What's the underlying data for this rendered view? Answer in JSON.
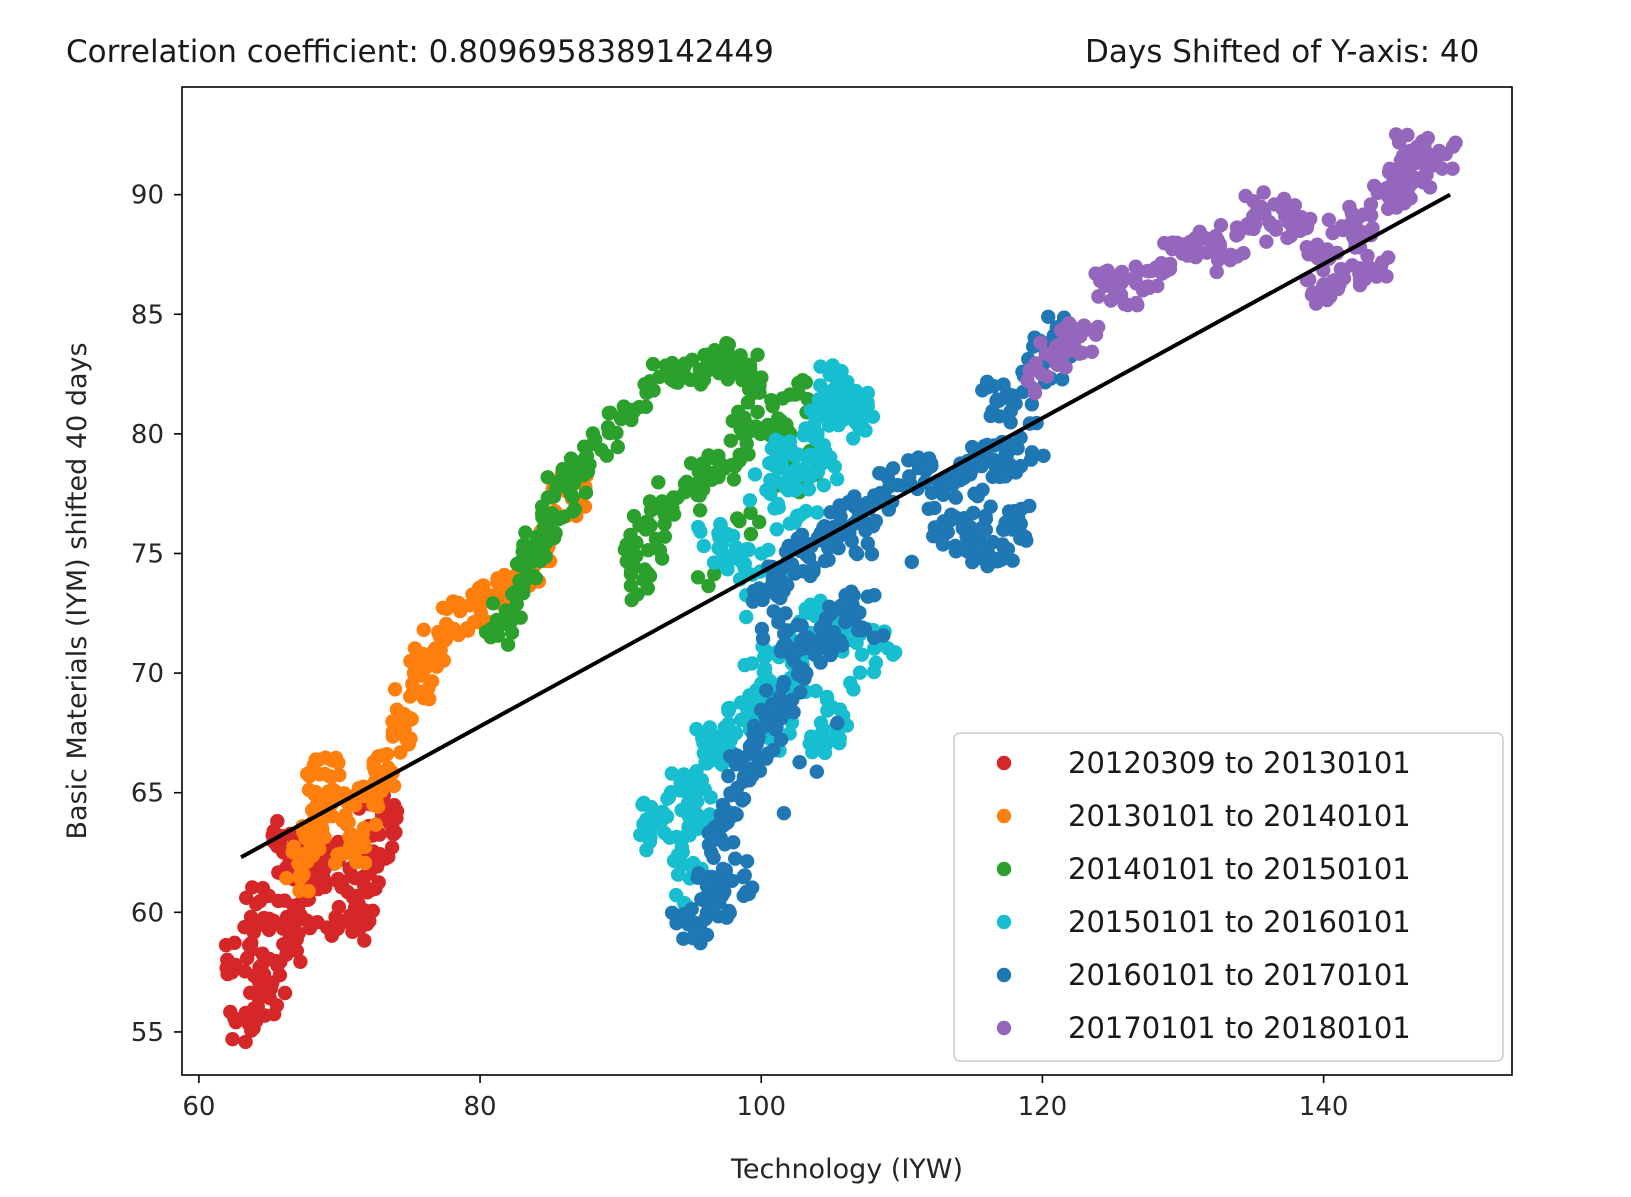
{
  "chart_data": {
    "type": "scatter",
    "title_left": "Correlation coefficient: 0.8096958389142449",
    "title_right": "Days Shifted of Y-axis: 40",
    "xlabel": "Technology (IYW)",
    "ylabel": "Basic Materials (IYM) shifted 40 days",
    "xlim": [
      58.8,
      153.4
    ],
    "ylim": [
      53.2,
      94.5
    ],
    "x_ticks": [
      60,
      80,
      100,
      120,
      140
    ],
    "y_ticks": [
      55,
      60,
      65,
      70,
      75,
      80,
      85,
      90
    ],
    "legend_position": "lower right",
    "grid": false,
    "series": [
      {
        "name": "20120309 to 20130101",
        "color": "#d62728",
        "anchors": [
          [
            63.2,
            55.3
          ],
          [
            64.5,
            56.0
          ],
          [
            65.2,
            57.5
          ],
          [
            66.0,
            58.6
          ],
          [
            67.0,
            59.8
          ],
          [
            68.2,
            61.0
          ],
          [
            69.0,
            61.9
          ],
          [
            70.2,
            62.5
          ],
          [
            71.0,
            60.2
          ],
          [
            71.8,
            61.6
          ],
          [
            72.5,
            62.8
          ],
          [
            73.0,
            63.3
          ],
          [
            73.3,
            64.2
          ],
          [
            65.5,
            60.3
          ],
          [
            64.2,
            59.8
          ],
          [
            66.5,
            62.0
          ],
          [
            66.2,
            63.5
          ],
          [
            70.0,
            59.5
          ],
          [
            72.0,
            59.3
          ],
          [
            63.0,
            58.0
          ]
        ]
      },
      {
        "name": "20130101 to 20140101",
        "color": "#ff7f0e",
        "anchors": [
          [
            66.8,
            61.5
          ],
          [
            67.5,
            62.8
          ],
          [
            68.0,
            64.0
          ],
          [
            68.6,
            65.5
          ],
          [
            69.3,
            66.0
          ],
          [
            70.0,
            64.2
          ],
          [
            70.5,
            62.5
          ],
          [
            71.5,
            63.4
          ],
          [
            72.0,
            64.8
          ],
          [
            73.0,
            66.0
          ],
          [
            74.0,
            67.2
          ],
          [
            75.0,
            68.8
          ],
          [
            75.8,
            70.0
          ],
          [
            76.5,
            71.0
          ],
          [
            78.0,
            72.2
          ],
          [
            79.5,
            72.5
          ],
          [
            81.0,
            73.0
          ],
          [
            82.5,
            73.6
          ],
          [
            84.5,
            75.2
          ],
          [
            86.5,
            77.5
          ]
        ]
      },
      {
        "name": "20140101 to 20150101",
        "color": "#2ca02c",
        "anchors": [
          [
            81.5,
            71.8
          ],
          [
            82.5,
            72.8
          ],
          [
            83.3,
            74.5
          ],
          [
            84.0,
            75.3
          ],
          [
            85.0,
            76.2
          ],
          [
            85.8,
            77.5
          ],
          [
            86.8,
            78.3
          ],
          [
            88.0,
            79.0
          ],
          [
            90.0,
            80.5
          ],
          [
            92.0,
            81.8
          ],
          [
            94.0,
            82.5
          ],
          [
            96.0,
            82.8
          ],
          [
            98.0,
            83.2
          ],
          [
            99.5,
            82.3
          ],
          [
            99.2,
            80.5
          ],
          [
            98.5,
            79.5
          ],
          [
            97.0,
            78.4
          ],
          [
            95.0,
            78.0
          ],
          [
            93.0,
            77.2
          ],
          [
            90.5,
            75.0
          ],
          [
            91.8,
            73.8
          ],
          [
            92.5,
            76.5
          ],
          [
            101.0,
            80.5
          ],
          [
            102.5,
            81.8
          ],
          [
            96.5,
            74.2
          ],
          [
            103.0,
            78.7
          ]
        ]
      },
      {
        "name": "20150101 to 20160101",
        "color": "#17becf",
        "anchors": [
          [
            91.5,
            63.2
          ],
          [
            92.5,
            64.2
          ],
          [
            94.5,
            65.3
          ],
          [
            96.0,
            66.8
          ],
          [
            97.0,
            67.3
          ],
          [
            98.5,
            68.0
          ],
          [
            99.5,
            68.5
          ],
          [
            101.0,
            70.2
          ],
          [
            102.5,
            71.5
          ],
          [
            104.0,
            72.3
          ],
          [
            105.5,
            72.0
          ],
          [
            107.0,
            71.5
          ],
          [
            108.5,
            71.0
          ],
          [
            105.0,
            68.5
          ],
          [
            104.5,
            66.8
          ],
          [
            103.0,
            70.0
          ],
          [
            101.0,
            67.5
          ],
          [
            96.5,
            75.8
          ],
          [
            98.0,
            75.2
          ],
          [
            99.5,
            74.5
          ],
          [
            100.5,
            77.8
          ],
          [
            101.5,
            79.2
          ],
          [
            102.5,
            78.0
          ],
          [
            103.5,
            79.5
          ],
          [
            104.5,
            80.5
          ],
          [
            105.5,
            81.3
          ],
          [
            106.5,
            80.5
          ],
          [
            107.5,
            81.0
          ],
          [
            105.0,
            82.5
          ],
          [
            104.5,
            78.5
          ],
          [
            103.0,
            77.0
          ],
          [
            95.0,
            60.8
          ],
          [
            94.5,
            62.5
          ],
          [
            95.5,
            64.5
          ]
        ]
      },
      {
        "name": "20160101 to 20170101",
        "color": "#1f77b4",
        "anchors": [
          [
            94.5,
            59.2
          ],
          [
            95.5,
            59.8
          ],
          [
            96.5,
            61.0
          ],
          [
            97.0,
            62.8
          ],
          [
            97.5,
            64.0
          ],
          [
            98.5,
            65.2
          ],
          [
            99.0,
            66.0
          ],
          [
            100.0,
            67.0
          ],
          [
            100.8,
            68.2
          ],
          [
            101.5,
            69.0
          ],
          [
            102.5,
            70.5
          ],
          [
            104.0,
            71.2
          ],
          [
            105.5,
            71.5
          ],
          [
            106.5,
            72.5
          ],
          [
            101.5,
            71.5
          ],
          [
            100.5,
            73.0
          ],
          [
            101.0,
            74.0
          ],
          [
            102.5,
            74.8
          ],
          [
            104.0,
            75.2
          ],
          [
            105.0,
            76.0
          ],
          [
            106.0,
            76.5
          ],
          [
            107.0,
            76.8
          ],
          [
            106.5,
            73.0
          ],
          [
            108.5,
            77.5
          ],
          [
            110.0,
            78.3
          ],
          [
            112.0,
            78.2
          ],
          [
            114.0,
            78.0
          ],
          [
            115.5,
            78.8
          ],
          [
            116.5,
            79.0
          ],
          [
            117.5,
            79.0
          ],
          [
            118.5,
            81.0
          ],
          [
            119.5,
            83.0
          ],
          [
            120.5,
            84.5
          ],
          [
            121.0,
            83.5
          ],
          [
            117.5,
            75.5
          ],
          [
            118.5,
            76.2
          ],
          [
            116.5,
            75.2
          ],
          [
            115.0,
            75.3
          ],
          [
            113.8,
            75.7
          ],
          [
            115.5,
            77.2
          ],
          [
            112.5,
            76.2
          ],
          [
            98.5,
            61.5
          ],
          [
            97.0,
            60.5
          ],
          [
            116.5,
            81.5
          ]
        ]
      },
      {
        "name": "20170101 to 20180101",
        "color": "#9467bd",
        "anchors": [
          [
            120.0,
            82.5
          ],
          [
            121.0,
            83.5
          ],
          [
            122.0,
            84.0
          ],
          [
            123.0,
            84.2
          ],
          [
            124.5,
            86.5
          ],
          [
            126.0,
            86.0
          ],
          [
            127.5,
            86.2
          ],
          [
            129.5,
            87.3
          ],
          [
            131.0,
            87.8
          ],
          [
            132.5,
            87.5
          ],
          [
            133.5,
            88.0
          ],
          [
            135.5,
            89.3
          ],
          [
            137.0,
            88.8
          ],
          [
            138.5,
            88.3
          ],
          [
            140.0,
            88.0
          ],
          [
            141.5,
            89.0
          ],
          [
            143.0,
            88.5
          ],
          [
            144.5,
            89.5
          ],
          [
            145.5,
            90.5
          ],
          [
            146.5,
            91.0
          ],
          [
            147.5,
            91.5
          ],
          [
            148.5,
            91.8
          ],
          [
            146.0,
            92.2
          ],
          [
            139.5,
            85.8
          ],
          [
            141.0,
            86.5
          ],
          [
            143.5,
            87.0
          ]
        ]
      }
    ],
    "regression_line": {
      "x": [
        63.0,
        149.0
      ],
      "y": [
        62.3,
        90.0
      ],
      "color": "#000000"
    }
  }
}
